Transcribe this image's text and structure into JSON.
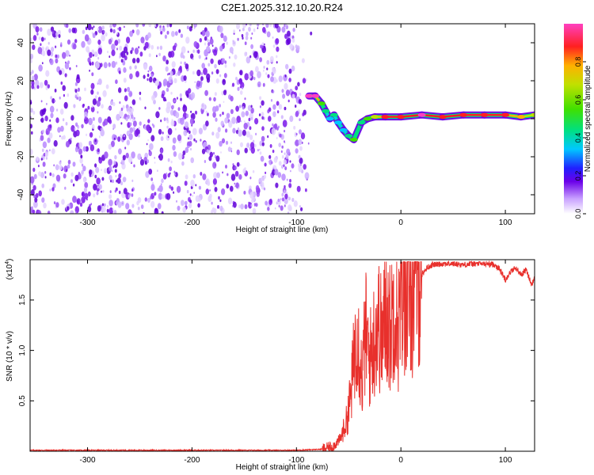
{
  "title": "C2E1.2025.312.10.20.R24",
  "chart_data": [
    {
      "type": "heatmap",
      "xlabel": "Height of straight line (km)",
      "ylabel": "Frequency (Hz)",
      "xlim": [
        -355,
        128
      ],
      "ylim": [
        -50,
        50
      ],
      "x_ticks": [
        -300,
        -200,
        -100,
        0,
        100
      ],
      "y_ticks": [
        -40,
        -20,
        0,
        20,
        40
      ],
      "noise_region_x": [
        -355,
        -85
      ],
      "signal_ridge": [
        {
          "x": -88,
          "y": 12,
          "amp": 0.95
        },
        {
          "x": -82,
          "y": 12,
          "amp": 0.95
        },
        {
          "x": -76,
          "y": 8,
          "amp": 0.55
        },
        {
          "x": -72,
          "y": 4,
          "amp": 0.45
        },
        {
          "x": -68,
          "y": 0,
          "amp": 0.4
        },
        {
          "x": -64,
          "y": 2,
          "amp": 0.45
        },
        {
          "x": -60,
          "y": -2,
          "amp": 0.35
        },
        {
          "x": -55,
          "y": -6,
          "amp": 0.4
        },
        {
          "x": -50,
          "y": -9,
          "amp": 0.45
        },
        {
          "x": -45,
          "y": -11,
          "amp": 0.55
        },
        {
          "x": -38,
          "y": -2,
          "amp": 0.5
        },
        {
          "x": -32,
          "y": 0,
          "amp": 0.55
        },
        {
          "x": -25,
          "y": 1,
          "amp": 0.7
        },
        {
          "x": -15,
          "y": 1,
          "amp": 0.85
        },
        {
          "x": 0,
          "y": 1,
          "amp": 0.9
        },
        {
          "x": 20,
          "y": 2,
          "amp": 0.95
        },
        {
          "x": 40,
          "y": 1,
          "amp": 0.92
        },
        {
          "x": 60,
          "y": 2,
          "amp": 0.85
        },
        {
          "x": 80,
          "y": 2,
          "amp": 0.9
        },
        {
          "x": 100,
          "y": 2,
          "amp": 0.85
        },
        {
          "x": 115,
          "y": 1,
          "amp": 0.75
        },
        {
          "x": 128,
          "y": 2,
          "amp": 0.7
        }
      ],
      "colorbar": {
        "label": "Normalized spectral amplitude",
        "range": [
          0,
          1
        ],
        "ticks": [
          "0.0",
          "0.2",
          "0.4",
          "0.6",
          "0.8"
        ],
        "colormap": [
          "#ffffff",
          "#c8a0ff",
          "#6a00e8",
          "#2020ff",
          "#00c8ff",
          "#00e080",
          "#40e000",
          "#c0e000",
          "#ffb000",
          "#ff2020",
          "#ff40c0"
        ]
      }
    },
    {
      "type": "line",
      "xlabel": "Height of straight line (km)",
      "ylabel": "SNR (10 * v/v)",
      "multiplier_label": "(x10",
      "multiplier_exp": "4",
      "multiplier_close": ")",
      "xlim": [
        -355,
        128
      ],
      "ylim": [
        0,
        1.9
      ],
      "x_ticks": [
        -300,
        -200,
        -100,
        0,
        100
      ],
      "y_ticks": [
        "0.5",
        "1.0",
        "1.5"
      ],
      "y_tick_values": [
        0.5,
        1.0,
        1.5
      ],
      "series": [
        {
          "color": "#e8302c",
          "x": [
            -355,
            -300,
            -200,
            -100,
            -75,
            -65,
            -58,
            -52,
            -48,
            -45,
            -42,
            -40,
            -37,
            -34,
            -30,
            -26,
            -22,
            -18,
            -14,
            -10,
            -6,
            -3,
            0,
            3,
            6,
            10,
            15,
            20,
            25,
            30,
            40,
            50,
            60,
            70,
            80,
            90,
            95,
            100,
            105,
            110,
            115,
            120,
            125,
            128
          ],
          "y": [
            0.01,
            0.01,
            0.01,
            0.01,
            0.02,
            0.05,
            0.12,
            0.3,
            0.55,
            0.9,
            1.3,
            1.0,
            0.7,
            1.2,
            0.9,
            1.1,
            1.3,
            1.1,
            1.4,
            1.2,
            1.55,
            1.2,
            1.45,
            1.6,
            1.7,
            1.5,
            1.8,
            1.75,
            1.82,
            1.85,
            1.86,
            1.86,
            1.85,
            1.86,
            1.86,
            1.85,
            1.8,
            1.7,
            1.78,
            1.82,
            1.75,
            1.8,
            1.65,
            1.72
          ]
        }
      ]
    }
  ]
}
